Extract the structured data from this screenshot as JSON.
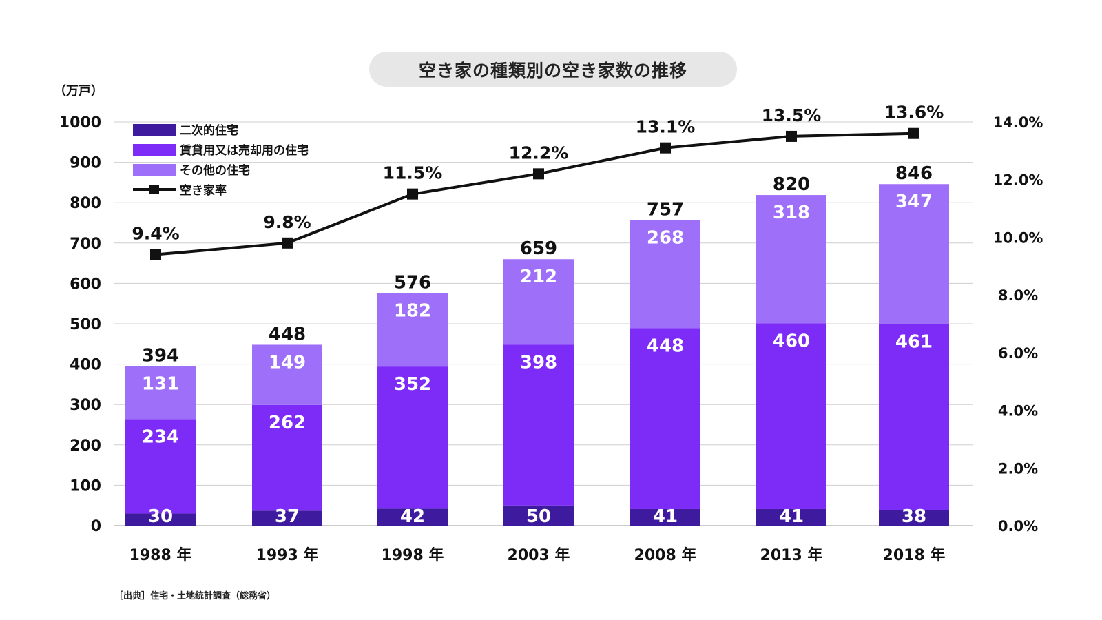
{
  "title": "空き家の種類別の空き家数の推移",
  "source": "［出典］住宅・土地統計調査（総務省）",
  "colors": {
    "secondary": "#3e1b9e",
    "rental": "#7d2cf7",
    "other": "#9e6ff8",
    "rate": "#111111",
    "grid": "#cfcfcf"
  },
  "chart_data": {
    "type": "bar",
    "stacked": true,
    "title": "空き家の種類別の空き家数の推移",
    "categories": [
      "1988 年",
      "1993 年",
      "1998 年",
      "2003 年",
      "2008 年",
      "2013 年",
      "2018 年"
    ],
    "y_unit_label": "（万戸）",
    "ylim": [
      0,
      1000
    ],
    "y_ticks": [
      0,
      100,
      200,
      300,
      400,
      500,
      600,
      700,
      800,
      900,
      1000
    ],
    "y2lim": [
      0,
      14
    ],
    "y2_ticks": [
      "0.0%",
      "2.0%",
      "4.0%",
      "6.0%",
      "8.0%",
      "10.0%",
      "12.0%",
      "14.0%"
    ],
    "grid": true,
    "legend_position": "top-left",
    "series": [
      {
        "name": "二次的住宅",
        "values": [
          30,
          37,
          42,
          50,
          41,
          41,
          38
        ]
      },
      {
        "name": "賃貸用又は売却用の住宅",
        "values": [
          234,
          262,
          352,
          398,
          448,
          460,
          461
        ]
      },
      {
        "name": "その他の住宅",
        "values": [
          131,
          149,
          182,
          212,
          268,
          318,
          347
        ]
      }
    ],
    "totals": [
      394,
      448,
      576,
      659,
      757,
      820,
      846
    ],
    "line_series": {
      "name": "空き家率",
      "axis": "right",
      "values": [
        9.4,
        9.8,
        11.5,
        12.2,
        13.1,
        13.5,
        13.6
      ],
      "labels": [
        "9.4%",
        "9.8%",
        "11.5%",
        "12.2%",
        "13.1%",
        "13.5%",
        "13.6%"
      ]
    }
  }
}
